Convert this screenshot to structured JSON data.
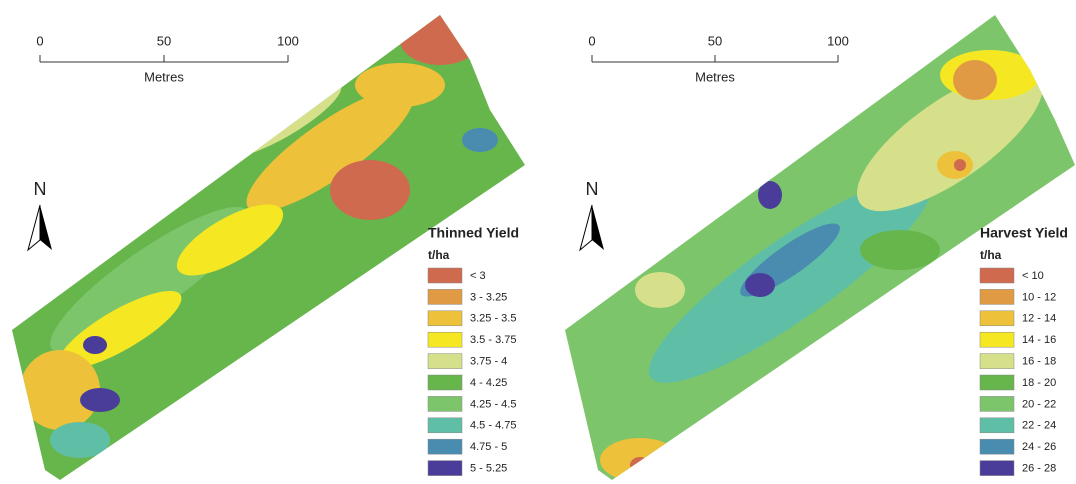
{
  "panels": [
    {
      "scale": {
        "ticks": [
          0,
          50,
          100
        ],
        "lim": [
          0,
          100
        ],
        "unit": "Metres"
      },
      "north": "N",
      "legend": {
        "title": "Thinned Yield",
        "unit": "t/ha",
        "classes": [
          {
            "label": "< 3",
            "color": "#cf6a4f"
          },
          {
            "label": "3 - 3.25",
            "color": "#e09a44"
          },
          {
            "label": "3.25 - 3.5",
            "color": "#eec13a"
          },
          {
            "label": "3.5 - 3.75",
            "color": "#f5e823"
          },
          {
            "label": "3.75 - 4",
            "color": "#d6e08a"
          },
          {
            "label": "4 - 4.25",
            "color": "#66b64c"
          },
          {
            "label": "4.25 - 4.5",
            "color": "#7cc56b"
          },
          {
            "label": "4.5 - 4.75",
            "color": "#5fbfa6"
          },
          {
            "label": "4.75 - 5",
            "color": "#4a8cb0"
          },
          {
            "label": "5 - 5.25",
            "color": "#4a3d9a"
          }
        ]
      }
    },
    {
      "scale": {
        "ticks": [
          0,
          50,
          100
        ],
        "lim": [
          0,
          100
        ],
        "unit": "Metres"
      },
      "north": "N",
      "legend": {
        "title": "Harvest Yield",
        "unit": "t/ha",
        "classes": [
          {
            "label": "< 10",
            "color": "#cf6a4f"
          },
          {
            "label": "10 - 12",
            "color": "#e09a44"
          },
          {
            "label": "12 - 14",
            "color": "#eec13a"
          },
          {
            "label": "14 - 16",
            "color": "#f5e823"
          },
          {
            "label": "16 - 18",
            "color": "#d6e08a"
          },
          {
            "label": "18 - 20",
            "color": "#66b64c"
          },
          {
            "label": "20 - 22",
            "color": "#7cc56b"
          },
          {
            "label": "22 - 24",
            "color": "#5fbfa6"
          },
          {
            "label": "24 - 26",
            "color": "#4a8cb0"
          },
          {
            "label": "26 - 28",
            "color": "#4a3d9a"
          }
        ]
      }
    }
  ]
}
